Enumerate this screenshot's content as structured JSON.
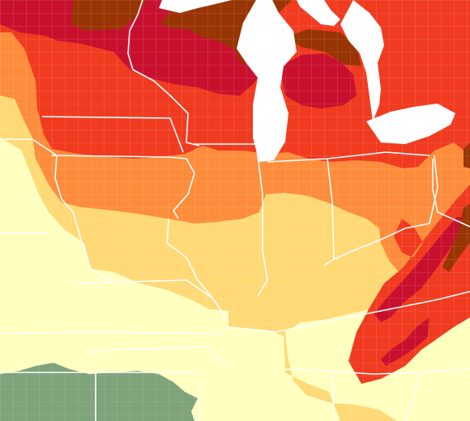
{
  "map": {
    "colors": {
      "pale_yellow": "#ffffbf",
      "light_orange": "#fed976",
      "orange": "#fd8d3c",
      "red_orange": "#f03b20",
      "crimson": "#c8102e",
      "brown": "#993404",
      "sage_green": "#7fa37a",
      "water": "#ffffff",
      "state_border": "#ffffff"
    },
    "legend": [],
    "labels": []
  }
}
